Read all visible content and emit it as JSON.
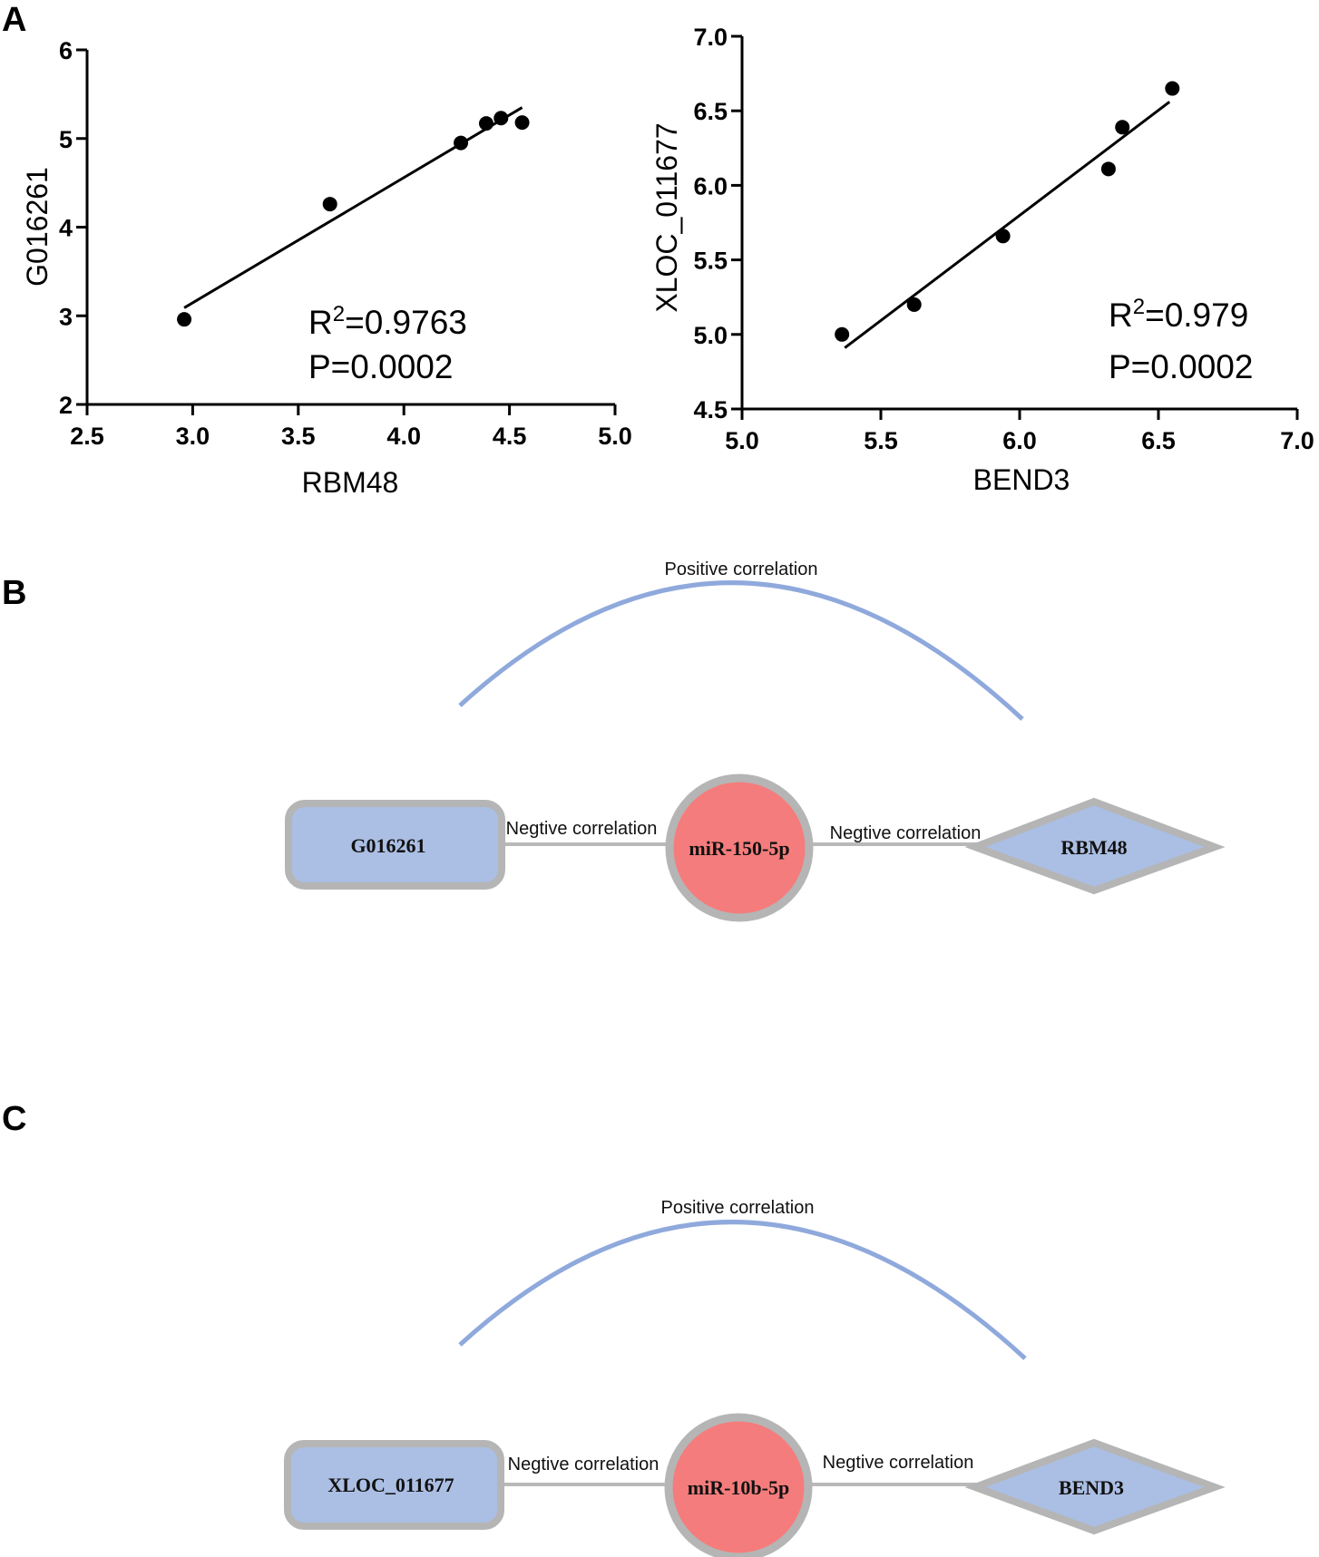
{
  "panels": {
    "a": "A",
    "b": "B",
    "c": "C"
  },
  "chart_data": [
    {
      "type": "scatter",
      "title": "",
      "xlabel": "RBM48",
      "ylabel": "G016261",
      "xlim": [
        2.5,
        5.0
      ],
      "ylim": [
        2,
        6
      ],
      "xticks": [
        "2.5",
        "3.0",
        "3.5",
        "4.0",
        "4.5",
        "5.0"
      ],
      "yticks": [
        "2",
        "3",
        "4",
        "5",
        "6"
      ],
      "points": [
        {
          "x": 2.96,
          "y": 2.96
        },
        {
          "x": 3.65,
          "y": 4.26
        },
        {
          "x": 4.27,
          "y": 4.95
        },
        {
          "x": 4.39,
          "y": 5.17
        },
        {
          "x": 4.46,
          "y": 5.23
        },
        {
          "x": 4.56,
          "y": 5.18
        }
      ],
      "fit_line": {
        "x": [
          2.96,
          4.56
        ],
        "y": [
          3.09,
          5.35
        ]
      },
      "annotation": {
        "r2_prefix": "R",
        "r2_sup": "2",
        "r2_value": "=0.9763",
        "p_text": "P=0.0002"
      },
      "grid": false
    },
    {
      "type": "scatter",
      "title": "",
      "xlabel": "BEND3",
      "ylabel": "XLOC_011677",
      "xlim": [
        5.0,
        7.0
      ],
      "ylim": [
        4.5,
        7.0
      ],
      "xticks": [
        "5.0",
        "5.5",
        "6.0",
        "6.5",
        "7.0"
      ],
      "yticks": [
        "4.5",
        "5.0",
        "5.5",
        "6.0",
        "6.5",
        "7.0"
      ],
      "points": [
        {
          "x": 5.36,
          "y": 5.0
        },
        {
          "x": 5.62,
          "y": 5.2
        },
        {
          "x": 5.94,
          "y": 5.66
        },
        {
          "x": 6.32,
          "y": 6.11
        },
        {
          "x": 6.37,
          "y": 6.39
        },
        {
          "x": 6.55,
          "y": 6.65
        }
      ],
      "fit_line": {
        "x": [
          5.37,
          6.54
        ],
        "y": [
          4.91,
          6.56
        ]
      },
      "annotation": {
        "r2_prefix": "R",
        "r2_sup": "2",
        "r2_value": "=0.979",
        "p_text": "P=0.0002"
      },
      "grid": false
    }
  ],
  "networks": [
    {
      "arc_label": "Positive correlation",
      "left_node": "G016261",
      "center_node": "miR-150-5p",
      "right_node": "RBM48",
      "left_edge_label": "Negtive correlation",
      "right_edge_label": "Negtive correlation",
      "colors": {
        "arc": "#8FA9DC",
        "node_fill": "#ABBEE3",
        "mirna_fill": "#F57C7C",
        "border": "#B5B5B5",
        "edge": "#B9B9B9"
      }
    },
    {
      "arc_label": "Positive  correlation",
      "left_node": "XLOC_011677",
      "center_node": "miR-10b-5p",
      "right_node": "BEND3",
      "left_edge_label": "Negtive correlation",
      "right_edge_label": "Negtive correlation",
      "colors": {
        "arc": "#8FA9DC",
        "node_fill": "#ABBEE3",
        "mirna_fill": "#F57C7C",
        "border": "#B5B5B5",
        "edge": "#B9B9B9"
      }
    }
  ]
}
